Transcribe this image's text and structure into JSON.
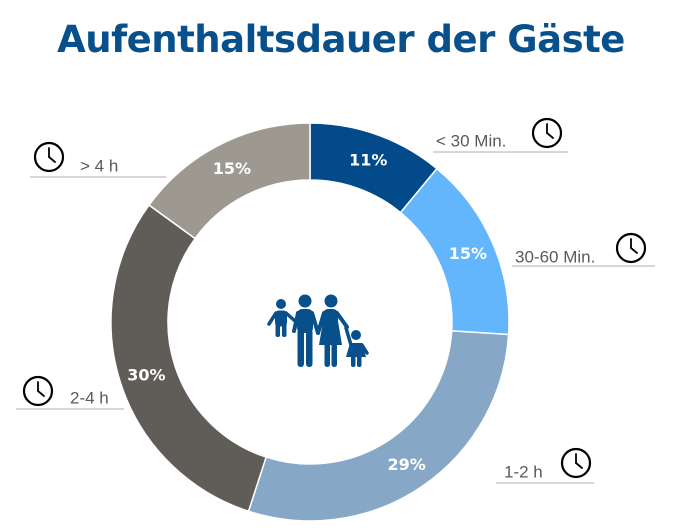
{
  "chart_data": {
    "type": "pie",
    "title": "Aufenthaltsdauer der Gäste",
    "categories": [
      "< 30 Min.",
      "30-60 Min.",
      "1-2 h",
      "2-4 h",
      "> 4 h"
    ],
    "values": [
      11,
      15,
      29,
      30,
      15
    ],
    "value_labels": [
      "11%",
      "15%",
      "29%",
      "30%",
      "15%"
    ],
    "colors": [
      "#034a8a",
      "#63b6fb",
      "#86a8c6",
      "#605c58",
      "#9e9990"
    ],
    "label_text_color": "#ffffff"
  },
  "icons": {
    "center": "family-icon",
    "category": "clock-icon"
  },
  "colors": {
    "title": "#08508c",
    "icon": "#08508c",
    "category_text": "#5a5a5a",
    "leader_line": "#bfbfbf"
  }
}
